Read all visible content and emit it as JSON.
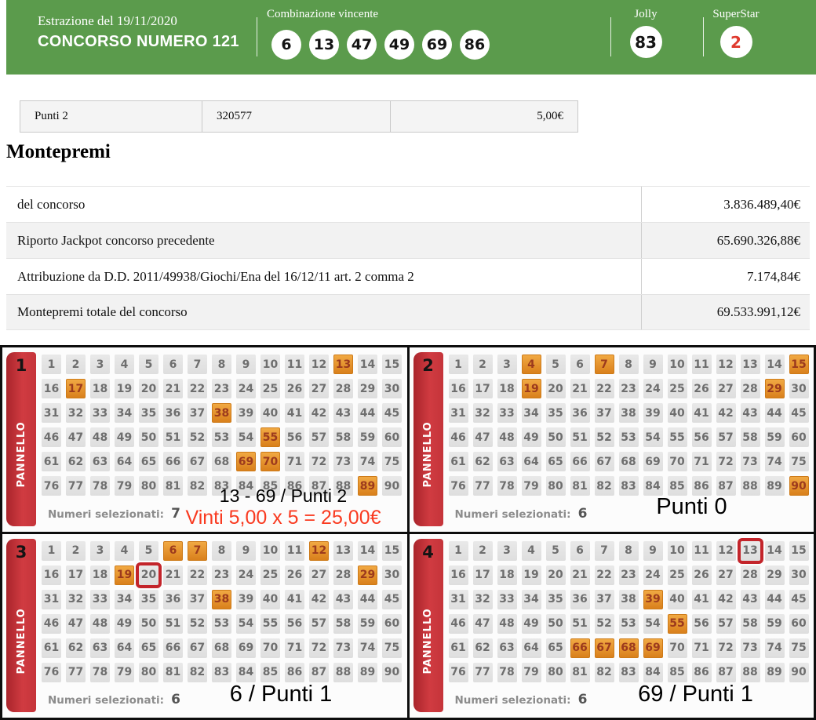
{
  "header": {
    "draw_date": "Estrazione del 19/11/2020",
    "concorso": "CONCORSO NUMERO 121",
    "combination_label": "Combinazione vincente",
    "winning_numbers": [
      "6",
      "13",
      "47",
      "49",
      "69",
      "86"
    ],
    "jolly_label": "Jolly",
    "jolly_number": "83",
    "superstar_label": "SuperStar",
    "superstar_number": "2"
  },
  "prize_row": {
    "label": "Punti 2",
    "winners": "320577",
    "amount": "5,00€"
  },
  "montepremi": {
    "title": "Montepremi",
    "rows": [
      {
        "label": "del concorso",
        "value": "3.836.489,40€"
      },
      {
        "label": "Riporto Jackpot concorso precedente",
        "value": "65.690.326,88€"
      },
      {
        "label": "Attribuzione da D.D. 2011/49938/Giochi/Ena del 16/12/11 art. 2 comma 2",
        "value": "7.174,84€"
      },
      {
        "label": "Montepremi totale del concorso",
        "value": "69.533.991,12€"
      }
    ]
  },
  "panels": [
    {
      "number": "1",
      "tab_label": "PANNELLO",
      "selected_numbers": [
        13,
        17,
        38,
        55,
        69,
        70,
        89
      ],
      "boxed_numbers": [],
      "selected_count_label": "Numeri selezionati:",
      "selected_count": "7",
      "annotations": [
        {
          "text": "13 - 69 / Punti 2",
          "style": "dark"
        },
        {
          "text": "Vinti 5,00 x 5 = 25,00€",
          "style": "red"
        }
      ]
    },
    {
      "number": "2",
      "tab_label": "PANNELLO",
      "selected_numbers": [
        4,
        7,
        15,
        19,
        29,
        90
      ],
      "boxed_numbers": [],
      "selected_count_label": "Numeri selezionati:",
      "selected_count": "6",
      "annotations": [
        {
          "text": "Punti 0",
          "style": "dark"
        }
      ]
    },
    {
      "number": "3",
      "tab_label": "PANNELLO",
      "selected_numbers": [
        6,
        7,
        12,
        19,
        29,
        38
      ],
      "boxed_numbers": [
        20
      ],
      "selected_count_label": "Numeri selezionati:",
      "selected_count": "6",
      "annotations": [
        {
          "text": "6 / Punti 1",
          "style": "dark"
        }
      ]
    },
    {
      "number": "4",
      "tab_label": "PANNELLO",
      "selected_numbers": [
        39,
        55,
        66,
        67,
        68,
        69
      ],
      "boxed_numbers": [
        13
      ],
      "selected_count_label": "Numeri selezionati:",
      "selected_count": "6",
      "annotations": [
        {
          "text": "69 / Punti 1",
          "style": "dark"
        }
      ]
    }
  ],
  "grid": {
    "min": 1,
    "max": 90
  },
  "colors": {
    "header_green": "#5b9b4c",
    "superstar_red": "#df3a2e",
    "panel_tab_red": "#c5343a",
    "selected_orange": "#e89430",
    "selected_text": "#9c3a1d",
    "boxed_border_red": "#c3242a",
    "annotation_red": "#f93a20",
    "cell_gray": "#e4e4e4"
  }
}
